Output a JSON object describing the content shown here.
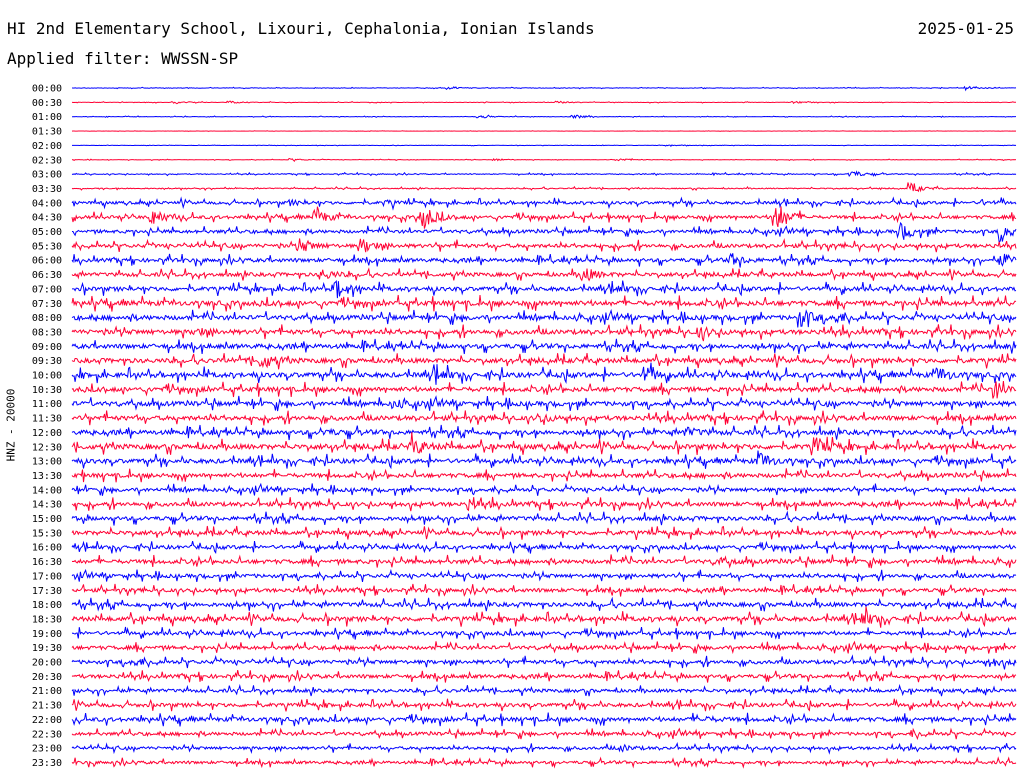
{
  "header": {
    "title": "HI 2nd Elementary School, Lixouri, Cephalonia, Ionian Islands",
    "date": "2025-01-25",
    "filter": "Applied filter: WWSSN-SP"
  },
  "colors": {
    "odd_trace": "#0000ff",
    "even_trace": "#ff0033",
    "background": "#ffffff"
  },
  "chart_data": {
    "type": "line",
    "title": "HI 2nd Elementary School, Lixouri, Cephalonia, Ionian Islands",
    "xlabel": "",
    "ylabel": "HNZ - 20000",
    "grid": false,
    "legend": "none",
    "x_unit": "minutes within row",
    "xlim": [
      0,
      30
    ],
    "rows": [
      {
        "label": "00:00",
        "activity": 0.05,
        "events": [
          [
            12,
            0.25
          ],
          [
            28.5,
            0.3
          ]
        ]
      },
      {
        "label": "00:30",
        "activity": 0.05,
        "events": [
          [
            3.3,
            0.2
          ],
          [
            5,
            0.2
          ],
          [
            15.5,
            0.15
          ],
          [
            23,
            0.2
          ]
        ]
      },
      {
        "label": "01:00",
        "activity": 0.05,
        "events": [
          [
            13,
            0.25
          ],
          [
            16,
            0.25
          ]
        ]
      },
      {
        "label": "01:30",
        "activity": 0.02,
        "events": []
      },
      {
        "label": "02:00",
        "activity": 0.03,
        "events": [
          [
            19,
            0.15
          ]
        ]
      },
      {
        "label": "02:30",
        "activity": 0.05,
        "events": [
          [
            7,
            0.15
          ],
          [
            13.5,
            0.15
          ],
          [
            17.5,
            0.15
          ]
        ]
      },
      {
        "label": "03:00",
        "activity": 0.1,
        "events": [
          [
            24.8,
            0.55
          ]
        ]
      },
      {
        "label": "03:30",
        "activity": 0.12,
        "events": [
          [
            26.7,
            0.7
          ]
        ]
      },
      {
        "label": "04:00",
        "activity": 0.35,
        "events": [
          [
            7,
            0.3
          ],
          [
            10,
            0.3
          ],
          [
            29,
            0.3
          ]
        ]
      },
      {
        "label": "04:30",
        "activity": 0.4,
        "events": [
          [
            2.6,
            0.9
          ],
          [
            7.8,
            1.0
          ],
          [
            11.2,
            1.6
          ],
          [
            22.4,
            2.2
          ]
        ]
      },
      {
        "label": "05:00",
        "activity": 0.4,
        "events": [
          [
            26.4,
            1.2
          ],
          [
            29.6,
            1.4
          ]
        ]
      },
      {
        "label": "05:30",
        "activity": 0.45,
        "events": [
          [
            7.3,
            0.9
          ],
          [
            9.3,
            0.9
          ]
        ]
      },
      {
        "label": "06:00",
        "activity": 0.45,
        "events": [
          [
            21.0,
            0.8
          ],
          [
            29.6,
            0.8
          ]
        ]
      },
      {
        "label": "06:30",
        "activity": 0.45,
        "events": [
          [
            8,
            0.7
          ],
          [
            16.3,
            1.0
          ]
        ]
      },
      {
        "label": "07:00",
        "activity": 0.5,
        "events": [
          [
            8.4,
            1.3
          ],
          [
            17.3,
            0.5
          ]
        ]
      },
      {
        "label": "07:30",
        "activity": 0.6,
        "events": []
      },
      {
        "label": "08:00",
        "activity": 0.55,
        "events": [
          [
            23.2,
            1.2
          ],
          [
            24.3,
            0.6
          ]
        ]
      },
      {
        "label": "08:30",
        "activity": 0.55,
        "events": [
          [
            4,
            0.5
          ],
          [
            20,
            0.7
          ]
        ]
      },
      {
        "label": "09:00",
        "activity": 0.55,
        "events": []
      },
      {
        "label": "09:30",
        "activity": 0.55,
        "events": [
          [
            6.1,
            1.0
          ]
        ]
      },
      {
        "label": "10:00",
        "activity": 0.6,
        "events": [
          [
            11.6,
            0.9
          ],
          [
            18.2,
            1.1
          ],
          [
            27.6,
            0.8
          ]
        ]
      },
      {
        "label": "10:30",
        "activity": 0.55,
        "events": [
          [
            29.4,
            1.1
          ]
        ]
      },
      {
        "label": "11:00",
        "activity": 0.55,
        "events": [
          [
            10.3,
            0.5
          ]
        ]
      },
      {
        "label": "11:30",
        "activity": 0.55,
        "events": [
          [
            14.9,
            0.5
          ]
        ]
      },
      {
        "label": "12:00",
        "activity": 0.55,
        "events": [
          [
            8,
            0.4
          ],
          [
            19.6,
            0.5
          ]
        ]
      },
      {
        "label": "12:30",
        "activity": 0.6,
        "events": [
          [
            10.9,
            1.0
          ],
          [
            23.7,
            1.2
          ]
        ]
      },
      {
        "label": "13:00",
        "activity": 0.55,
        "events": [
          [
            21.9,
            1.0
          ]
        ]
      },
      {
        "label": "13:30",
        "activity": 0.5,
        "events": []
      },
      {
        "label": "14:00",
        "activity": 0.45,
        "events": []
      },
      {
        "label": "14:30",
        "activity": 0.5,
        "events": [
          [
            12.7,
            0.7
          ]
        ]
      },
      {
        "label": "15:00",
        "activity": 0.5,
        "events": []
      },
      {
        "label": "15:30",
        "activity": 0.5,
        "events": []
      },
      {
        "label": "16:00",
        "activity": 0.45,
        "events": []
      },
      {
        "label": "16:30",
        "activity": 0.5,
        "events": [
          [
            20.5,
            0.5
          ]
        ]
      },
      {
        "label": "17:00",
        "activity": 0.45,
        "events": []
      },
      {
        "label": "17:30",
        "activity": 0.45,
        "events": []
      },
      {
        "label": "18:00",
        "activity": 0.5,
        "events": []
      },
      {
        "label": "18:30",
        "activity": 0.55,
        "events": [
          [
            25.2,
            0.9
          ]
        ]
      },
      {
        "label": "19:00",
        "activity": 0.45,
        "events": []
      },
      {
        "label": "19:30",
        "activity": 0.45,
        "events": []
      },
      {
        "label": "20:00",
        "activity": 0.45,
        "events": [
          [
            2.0,
            0.5
          ],
          [
            29.3,
            0.5
          ]
        ]
      },
      {
        "label": "20:30",
        "activity": 0.45,
        "events": []
      },
      {
        "label": "21:00",
        "activity": 0.4,
        "events": []
      },
      {
        "label": "21:30",
        "activity": 0.45,
        "events": []
      },
      {
        "label": "22:00",
        "activity": 0.5,
        "events": [
          [
            20.0,
            0.4
          ]
        ]
      },
      {
        "label": "22:30",
        "activity": 0.4,
        "events": [
          [
            26.8,
            0.4
          ]
        ]
      },
      {
        "label": "23:00",
        "activity": 0.35,
        "events": [
          [
            17.5,
            0.4
          ]
        ]
      },
      {
        "label": "23:30",
        "activity": 0.35,
        "events": []
      }
    ]
  }
}
